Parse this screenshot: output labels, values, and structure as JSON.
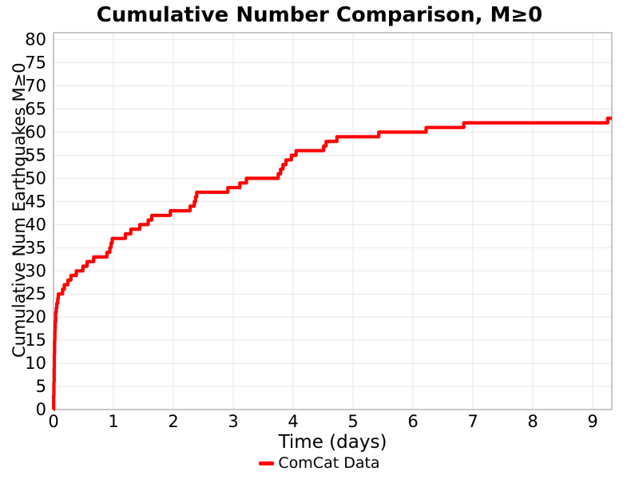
{
  "figure": {
    "background": "#ffffff"
  },
  "chart_data": {
    "type": "line",
    "line_style": "step-post",
    "title": "Cumulative Number Comparison, M≥0",
    "xlabel": "Time (days)",
    "ylabel": "Cumulative Num Earthquakes M≥0",
    "xlim": [
      0,
      9.32
    ],
    "ylim": [
      0,
      81.5
    ],
    "xticks": [
      0,
      1,
      2,
      3,
      4,
      5,
      6,
      7,
      8,
      9
    ],
    "yticks": [
      0,
      5,
      10,
      15,
      20,
      25,
      30,
      35,
      40,
      45,
      50,
      55,
      60,
      65,
      70,
      75,
      80
    ],
    "grid": true,
    "grid_color": "#e7e7e7",
    "border_color": "#ababab",
    "tick_label_color": "#000000",
    "legend": {
      "position": "bottom-center",
      "entries": [
        {
          "label": "ComCat Data",
          "color": "#ff0000"
        }
      ]
    },
    "series": [
      {
        "name": "ComCat Data",
        "color": "#ff0000",
        "line_width": 4.2,
        "x_end": 9.32,
        "points": [
          [
            0,
            0
          ],
          [
            0.003,
            3
          ],
          [
            0.006,
            6
          ],
          [
            0.01,
            9
          ],
          [
            0.014,
            12
          ],
          [
            0.018,
            15
          ],
          [
            0.022,
            17
          ],
          [
            0.028,
            19
          ],
          [
            0.036,
            21
          ],
          [
            0.046,
            22
          ],
          [
            0.055,
            23
          ],
          [
            0.07,
            24
          ],
          [
            0.08,
            25
          ],
          [
            0.15,
            26
          ],
          [
            0.18,
            27
          ],
          [
            0.24,
            28
          ],
          [
            0.29,
            29
          ],
          [
            0.38,
            30
          ],
          [
            0.49,
            31
          ],
          [
            0.56,
            32
          ],
          [
            0.67,
            33
          ],
          [
            0.89,
            34
          ],
          [
            0.94,
            35
          ],
          [
            0.96,
            36
          ],
          [
            0.98,
            37
          ],
          [
            1.2,
            38
          ],
          [
            1.29,
            39
          ],
          [
            1.44,
            40
          ],
          [
            1.58,
            41
          ],
          [
            1.64,
            42
          ],
          [
            1.95,
            43
          ],
          [
            2.28,
            44
          ],
          [
            2.35,
            45
          ],
          [
            2.37,
            46
          ],
          [
            2.39,
            47
          ],
          [
            2.91,
            48
          ],
          [
            3.11,
            49
          ],
          [
            3.22,
            50
          ],
          [
            3.75,
            51
          ],
          [
            3.79,
            52
          ],
          [
            3.83,
            53
          ],
          [
            3.88,
            54
          ],
          [
            3.97,
            55
          ],
          [
            4.05,
            56
          ],
          [
            4.51,
            57
          ],
          [
            4.55,
            58
          ],
          [
            4.73,
            59
          ],
          [
            5.43,
            60
          ],
          [
            6.22,
            61
          ],
          [
            6.85,
            62
          ],
          [
            9.25,
            63
          ]
        ]
      }
    ]
  }
}
